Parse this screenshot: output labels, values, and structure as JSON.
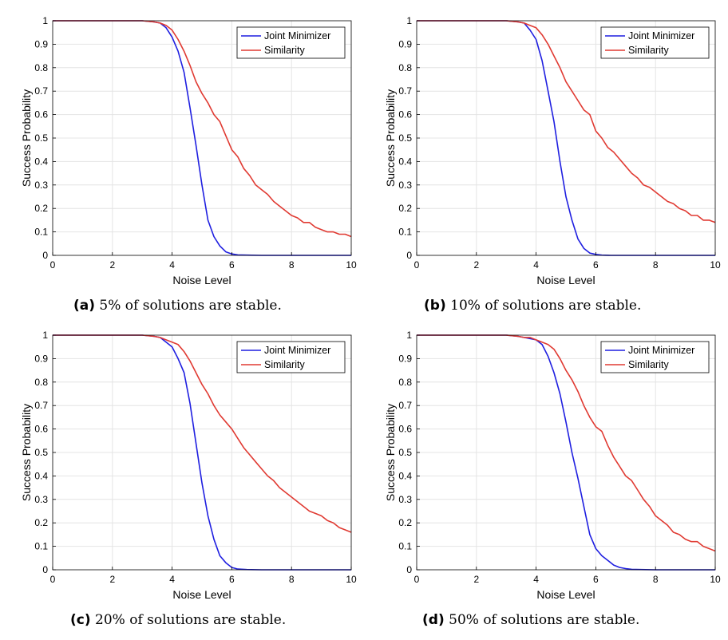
{
  "figure": {
    "panels": [
      {
        "tag": "(a)",
        "caption": "5% of solutions are stable."
      },
      {
        "tag": "(b)",
        "caption": "10% of solutions are stable."
      },
      {
        "tag": "(c)",
        "caption": "20% of solutions are stable."
      },
      {
        "tag": "(d)",
        "caption": "50% of solutions are stable."
      }
    ]
  },
  "colors": {
    "joint": "#1f1fe0",
    "similarity": "#e03a32",
    "grid": "#e4e4e4",
    "axis": "#000000"
  },
  "chart_data": [
    {
      "type": "line",
      "xlabel": "Noise Level",
      "ylabel": "Success Probability",
      "xlim": [
        0,
        10
      ],
      "ylim": [
        0,
        1
      ],
      "xticks": [
        "0",
        "2",
        "4",
        "6",
        "8",
        "10"
      ],
      "yticks": [
        "0",
        "0.1",
        "0.2",
        "0.3",
        "0.4",
        "0.5",
        "0.6",
        "0.7",
        "0.8",
        "0.9",
        "1"
      ],
      "grid": true,
      "legend": "top-right",
      "series": [
        {
          "name": "Joint Minimizer",
          "x": [
            0,
            1,
            2,
            3,
            3.4,
            3.6,
            3.8,
            4.0,
            4.2,
            4.4,
            4.6,
            4.8,
            5.0,
            5.2,
            5.4,
            5.6,
            5.8,
            6.0,
            6.2,
            6.5,
            7,
            8,
            10
          ],
          "y": [
            1,
            1,
            1,
            1,
            0.995,
            0.99,
            0.97,
            0.93,
            0.87,
            0.78,
            0.63,
            0.47,
            0.3,
            0.15,
            0.08,
            0.04,
            0.015,
            0.006,
            0.002,
            0.001,
            0,
            0,
            0
          ]
        },
        {
          "name": "Similarity",
          "x": [
            0,
            1,
            2,
            3,
            3.4,
            3.6,
            3.8,
            4.0,
            4.2,
            4.4,
            4.6,
            4.8,
            5.0,
            5.2,
            5.4,
            5.6,
            5.8,
            6.0,
            6.2,
            6.4,
            6.6,
            6.8,
            7.0,
            7.2,
            7.4,
            7.6,
            7.8,
            8.0,
            8.2,
            8.4,
            8.6,
            8.8,
            9.0,
            9.2,
            9.4,
            9.6,
            9.8,
            10.0
          ],
          "y": [
            1,
            1,
            1,
            1,
            0.995,
            0.99,
            0.98,
            0.96,
            0.92,
            0.87,
            0.81,
            0.74,
            0.69,
            0.65,
            0.6,
            0.57,
            0.51,
            0.45,
            0.42,
            0.37,
            0.34,
            0.3,
            0.28,
            0.26,
            0.23,
            0.21,
            0.19,
            0.17,
            0.16,
            0.14,
            0.14,
            0.12,
            0.11,
            0.1,
            0.1,
            0.09,
            0.09,
            0.08
          ]
        }
      ]
    },
    {
      "type": "line",
      "xlabel": "Noise Level",
      "ylabel": "Success Probability",
      "xlim": [
        0,
        10
      ],
      "ylim": [
        0,
        1
      ],
      "xticks": [
        "0",
        "2",
        "4",
        "6",
        "8",
        "10"
      ],
      "yticks": [
        "0",
        "0.1",
        "0.2",
        "0.3",
        "0.4",
        "0.5",
        "0.6",
        "0.7",
        "0.8",
        "0.9",
        "1"
      ],
      "grid": true,
      "legend": "top-right",
      "series": [
        {
          "name": "Joint Minimizer",
          "x": [
            0,
            1,
            2,
            3,
            3.4,
            3.6,
            3.8,
            4.0,
            4.2,
            4.4,
            4.6,
            4.8,
            5.0,
            5.2,
            5.4,
            5.6,
            5.8,
            6.0,
            6.2,
            6.5,
            7,
            8,
            10
          ],
          "y": [
            1,
            1,
            1,
            1,
            0.995,
            0.99,
            0.96,
            0.92,
            0.83,
            0.7,
            0.57,
            0.4,
            0.25,
            0.15,
            0.07,
            0.03,
            0.01,
            0.004,
            0.001,
            0,
            0,
            0,
            0
          ]
        },
        {
          "name": "Similarity",
          "x": [
            0,
            1,
            2,
            3,
            3.4,
            3.6,
            3.8,
            4.0,
            4.2,
            4.4,
            4.6,
            4.8,
            5.0,
            5.2,
            5.4,
            5.6,
            5.8,
            6.0,
            6.2,
            6.4,
            6.6,
            6.8,
            7.0,
            7.2,
            7.4,
            7.6,
            7.8,
            8.0,
            8.2,
            8.4,
            8.6,
            8.8,
            9.0,
            9.2,
            9.4,
            9.6,
            9.8,
            10.0
          ],
          "y": [
            1,
            1,
            1,
            1,
            0.995,
            0.99,
            0.98,
            0.97,
            0.94,
            0.9,
            0.85,
            0.8,
            0.74,
            0.7,
            0.66,
            0.62,
            0.6,
            0.53,
            0.5,
            0.46,
            0.44,
            0.41,
            0.38,
            0.35,
            0.33,
            0.3,
            0.29,
            0.27,
            0.25,
            0.23,
            0.22,
            0.2,
            0.19,
            0.17,
            0.17,
            0.15,
            0.15,
            0.14
          ]
        }
      ]
    },
    {
      "type": "line",
      "xlabel": "Noise Level",
      "ylabel": "Success Probability",
      "xlim": [
        0,
        10
      ],
      "ylim": [
        0,
        1
      ],
      "xticks": [
        "0",
        "2",
        "4",
        "6",
        "8",
        "10"
      ],
      "yticks": [
        "0",
        "0.1",
        "0.2",
        "0.3",
        "0.4",
        "0.5",
        "0.6",
        "0.7",
        "0.8",
        "0.9",
        "1"
      ],
      "grid": true,
      "legend": "top-right",
      "series": [
        {
          "name": "Joint Minimizer",
          "x": [
            0,
            1,
            2,
            3,
            3.4,
            3.6,
            3.8,
            4.0,
            4.2,
            4.4,
            4.6,
            4.8,
            5.0,
            5.2,
            5.4,
            5.6,
            5.8,
            6.0,
            6.2,
            6.5,
            7,
            8,
            10
          ],
          "y": [
            1,
            1,
            1,
            1,
            0.995,
            0.99,
            0.97,
            0.95,
            0.9,
            0.84,
            0.71,
            0.54,
            0.37,
            0.23,
            0.13,
            0.06,
            0.03,
            0.01,
            0.003,
            0.001,
            0,
            0,
            0
          ]
        },
        {
          "name": "Similarity",
          "x": [
            0,
            1,
            2,
            3,
            3.4,
            3.6,
            3.8,
            4.0,
            4.2,
            4.4,
            4.6,
            4.8,
            5.0,
            5.2,
            5.4,
            5.6,
            5.8,
            6.0,
            6.2,
            6.4,
            6.6,
            6.8,
            7.0,
            7.2,
            7.4,
            7.6,
            7.8,
            8.0,
            8.2,
            8.4,
            8.6,
            8.8,
            9.0,
            9.2,
            9.4,
            9.6,
            9.8,
            10.0
          ],
          "y": [
            1,
            1,
            1,
            1,
            0.995,
            0.99,
            0.98,
            0.97,
            0.96,
            0.93,
            0.89,
            0.84,
            0.79,
            0.75,
            0.7,
            0.66,
            0.63,
            0.6,
            0.56,
            0.52,
            0.49,
            0.46,
            0.43,
            0.4,
            0.38,
            0.35,
            0.33,
            0.31,
            0.29,
            0.27,
            0.25,
            0.24,
            0.23,
            0.21,
            0.2,
            0.18,
            0.17,
            0.16
          ]
        }
      ]
    },
    {
      "type": "line",
      "xlabel": "Noise Level",
      "ylabel": "Success Probability",
      "xlim": [
        0,
        10
      ],
      "ylim": [
        0,
        1
      ],
      "xticks": [
        "0",
        "2",
        "4",
        "6",
        "8",
        "10"
      ],
      "yticks": [
        "0",
        "0.1",
        "0.2",
        "0.3",
        "0.4",
        "0.5",
        "0.6",
        "0.7",
        "0.8",
        "0.9",
        "1"
      ],
      "grid": true,
      "legend": "top-right",
      "series": [
        {
          "name": "Joint Minimizer",
          "x": [
            0,
            1,
            2,
            3,
            3.4,
            3.6,
            3.8,
            4.0,
            4.2,
            4.4,
            4.6,
            4.8,
            5.0,
            5.2,
            5.4,
            5.6,
            5.8,
            6.0,
            6.2,
            6.4,
            6.6,
            6.8,
            7.0,
            7.2,
            7.5,
            8,
            10
          ],
          "y": [
            1,
            1,
            1,
            1,
            0.995,
            0.99,
            0.985,
            0.98,
            0.96,
            0.91,
            0.84,
            0.75,
            0.63,
            0.5,
            0.39,
            0.27,
            0.15,
            0.09,
            0.06,
            0.04,
            0.02,
            0.01,
            0.005,
            0.002,
            0.001,
            0,
            0
          ]
        },
        {
          "name": "Similarity",
          "x": [
            0,
            1,
            2,
            3,
            3.4,
            3.6,
            3.8,
            4.0,
            4.2,
            4.4,
            4.6,
            4.8,
            5.0,
            5.2,
            5.4,
            5.6,
            5.8,
            6.0,
            6.2,
            6.4,
            6.6,
            6.8,
            7.0,
            7.2,
            7.4,
            7.6,
            7.8,
            8.0,
            8.2,
            8.4,
            8.6,
            8.8,
            9.0,
            9.2,
            9.4,
            9.6,
            9.8,
            10.0
          ],
          "y": [
            1,
            1,
            1,
            1,
            0.995,
            0.99,
            0.99,
            0.98,
            0.97,
            0.96,
            0.94,
            0.9,
            0.85,
            0.81,
            0.76,
            0.7,
            0.65,
            0.61,
            0.59,
            0.53,
            0.48,
            0.44,
            0.4,
            0.38,
            0.34,
            0.3,
            0.27,
            0.23,
            0.21,
            0.19,
            0.16,
            0.15,
            0.13,
            0.12,
            0.12,
            0.1,
            0.09,
            0.08
          ]
        }
      ]
    }
  ]
}
